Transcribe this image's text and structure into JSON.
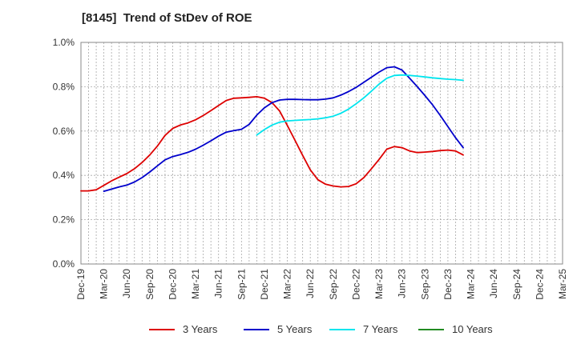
{
  "chart_data": {
    "type": "line",
    "title": "[8145]  Trend of StDev of ROE",
    "xlabel": "",
    "ylabel": "",
    "ylim": [
      0,
      1.0
    ],
    "yticks": [
      "0.0%",
      "0.2%",
      "0.4%",
      "0.6%",
      "0.8%",
      "1.0%"
    ],
    "ytick_values": [
      0,
      0.2,
      0.4,
      0.6,
      0.8,
      1.0
    ],
    "x_categories": [
      "Dec-19",
      "Mar-20",
      "Jun-20",
      "Sep-20",
      "Dec-20",
      "Mar-21",
      "Jun-21",
      "Sep-21",
      "Dec-21",
      "Mar-22",
      "Jun-22",
      "Sep-22",
      "Dec-22",
      "Mar-23",
      "Jun-23",
      "Sep-23",
      "Dec-23",
      "Mar-24",
      "Jun-24",
      "Sep-24",
      "Dec-24",
      "Mar-25"
    ],
    "grid": true,
    "legend_position": "bottom",
    "series": [
      {
        "name": "3 Years",
        "color": "#dd0000",
        "start_index": 0,
        "values": [
          0.33,
          0.33,
          0.335,
          0.355,
          0.375,
          0.392,
          0.408,
          0.43,
          0.458,
          0.492,
          0.532,
          0.58,
          0.612,
          0.627,
          0.637,
          0.651,
          0.67,
          0.692,
          0.715,
          0.738,
          0.748,
          0.75,
          0.752,
          0.755,
          0.748,
          0.728,
          0.69,
          0.625,
          0.558,
          0.49,
          0.425,
          0.38,
          0.36,
          0.352,
          0.348,
          0.35,
          0.362,
          0.39,
          0.43,
          0.472,
          0.518,
          0.53,
          0.525,
          0.51,
          0.503,
          0.505,
          0.508,
          0.512,
          0.514,
          0.51,
          0.492
        ]
      },
      {
        "name": "5 Years",
        "color": "#0000cc",
        "start_index": 3,
        "values": [
          0.328,
          0.338,
          0.348,
          0.356,
          0.37,
          0.39,
          0.415,
          0.443,
          0.47,
          0.485,
          0.494,
          0.504,
          0.518,
          0.536,
          0.556,
          0.577,
          0.595,
          0.602,
          0.608,
          0.63,
          0.672,
          0.705,
          0.728,
          0.74,
          0.743,
          0.743,
          0.742,
          0.741,
          0.741,
          0.744,
          0.75,
          0.762,
          0.778,
          0.797,
          0.82,
          0.843,
          0.866,
          0.886,
          0.89,
          0.875,
          0.838,
          0.8,
          0.76,
          0.718,
          0.67,
          0.62,
          0.57,
          0.525
        ]
      },
      {
        "name": "7 Years",
        "color": "#00e5ee",
        "start_index": 23,
        "values": [
          0.582,
          0.607,
          0.627,
          0.64,
          0.646,
          0.648,
          0.65,
          0.652,
          0.655,
          0.66,
          0.667,
          0.68,
          0.699,
          0.723,
          0.75,
          0.78,
          0.812,
          0.838,
          0.851,
          0.853,
          0.851,
          0.848,
          0.844,
          0.84,
          0.837,
          0.834,
          0.832,
          0.829
        ]
      },
      {
        "name": "10 Years",
        "color": "#228b22",
        "start_index": 0,
        "values": []
      }
    ]
  }
}
